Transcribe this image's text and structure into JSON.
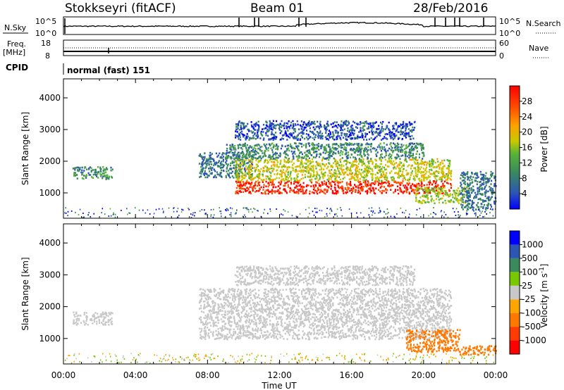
{
  "header": {
    "station": "Stokkseyri (fitACF)",
    "beam": "Beam 01",
    "date": "28/Feb/2016"
  },
  "top_panels": {
    "nsky_label": "N.Sky",
    "nsky_ticks": [
      "10^5",
      "10^0"
    ],
    "nsearch_label": "N.Search",
    "nsearch_ticks": [
      "10^5",
      "10^0"
    ],
    "freq_label": "Freq.",
    "freq_unit": "[MHz]",
    "freq_ticks": [
      "18",
      "8"
    ],
    "nave_label": "Nave",
    "nave_ticks": [
      "60",
      "0"
    ],
    "cpid_label": "CPID",
    "cpid_text": "normal (fast) 151"
  },
  "colors": {
    "power_scale": [
      "#0000ff",
      "#2c55b4",
      "#3a8a5c",
      "#58b438",
      "#c8c800",
      "#ffa000",
      "#ff5000",
      "#ff0000"
    ],
    "velocity_scale": [
      "#ff0000",
      "#ff3c00",
      "#ff7800",
      "#ffa500",
      "#c8c8c8",
      "#78c800",
      "#3a8a5c",
      "#2c55b4",
      "#0000ff"
    ],
    "ground_scatter": "#c8c8c8"
  },
  "chart_data": [
    {
      "type": "heatmap",
      "name": "power",
      "x_range": [
        "00:00",
        "00:00"
      ],
      "x_ticks": [
        "00:00",
        "04:00",
        "08:00",
        "12:00",
        "16:00",
        "20:00",
        "00:00"
      ],
      "xlabel": "Time UT",
      "ylabel": "Slant Range [km]",
      "y_ticks": [
        1000,
        2000,
        3000,
        4000
      ],
      "ylim": [
        200,
        4600
      ],
      "colorbar_label": "Power [dB]",
      "colorbar_ticks": [
        "4",
        "8",
        "12",
        "16",
        "20",
        "24",
        "28"
      ],
      "colorbar_range": [
        0,
        32
      ],
      "regions": [
        {
          "t_start": 0.5,
          "t_end": 2.7,
          "r_min": 1450,
          "r_max": 1850,
          "value": 10
        },
        {
          "t_start": 7.5,
          "t_end": 10.5,
          "r_min": 1500,
          "r_max": 2300,
          "value": 8
        },
        {
          "t_start": 9.5,
          "t_end": 21.5,
          "r_min": 1000,
          "r_max": 1400,
          "value": 28
        },
        {
          "t_start": 9.5,
          "t_end": 21.5,
          "r_min": 1400,
          "r_max": 2100,
          "value": 18
        },
        {
          "t_start": 9.0,
          "t_end": 20.0,
          "r_min": 2100,
          "r_max": 2600,
          "value": 10
        },
        {
          "t_start": 9.5,
          "t_end": 19.5,
          "r_min": 2700,
          "r_max": 3300,
          "value": 6
        },
        {
          "t_start": 19.5,
          "t_end": 22.5,
          "r_min": 700,
          "r_max": 1200,
          "value": 16
        },
        {
          "t_start": 22.0,
          "t_end": 24.0,
          "r_min": 500,
          "r_max": 1700,
          "value": 8
        }
      ]
    },
    {
      "type": "heatmap",
      "name": "velocity",
      "x_range": [
        "00:00",
        "00:00"
      ],
      "x_ticks": [
        "00:00",
        "04:00",
        "08:00",
        "12:00",
        "16:00",
        "20:00",
        "00:00"
      ],
      "xlabel": "Time UT",
      "ylabel": "Slant Range [km]",
      "y_ticks": [
        1000,
        2000,
        3000,
        4000
      ],
      "ylim": [
        200,
        4600
      ],
      "colorbar_label": "Velocity [m s^-1]",
      "colorbar_ticks": [
        "-1000",
        "-500",
        "-100",
        "-25",
        "25",
        "100",
        "500",
        "1000"
      ],
      "regions": [
        {
          "t_start": 0.5,
          "t_end": 2.7,
          "r_min": 1450,
          "r_max": 1850,
          "value": 0
        },
        {
          "t_start": 7.5,
          "t_end": 21.5,
          "r_min": 1000,
          "r_max": 2600,
          "value": 0
        },
        {
          "t_start": 9.5,
          "t_end": 19.5,
          "r_min": 2700,
          "r_max": 3300,
          "value": 0
        },
        {
          "t_start": 19.0,
          "t_end": 22.0,
          "r_min": 600,
          "r_max": 1300,
          "value": -300
        },
        {
          "t_start": 22.0,
          "t_end": 24.0,
          "r_min": 500,
          "r_max": 800,
          "value": -300
        }
      ]
    }
  ]
}
